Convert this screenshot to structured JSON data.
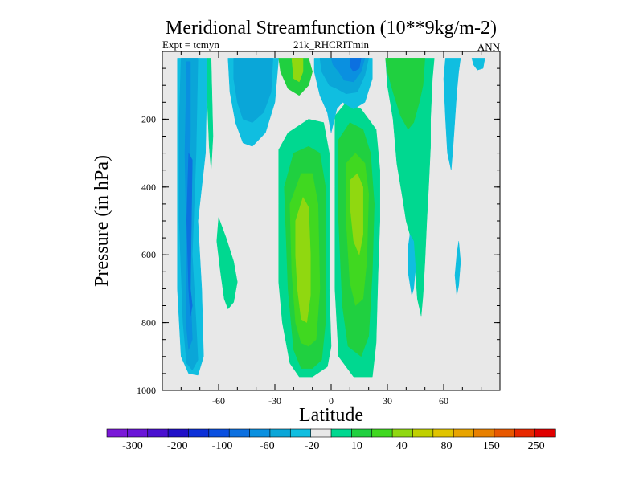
{
  "chart_data": {
    "type": "contour",
    "title": "Meridional Streamfunction (10**9kg/m-2)",
    "subtitle_left": "Expt = tcmyn",
    "subtitle_center": "21k_RHCRITmin",
    "subtitle_right": "ANN",
    "xlabel": "Latitude",
    "ylabel": "Pressure (in hPa)",
    "xlim": [
      -90,
      90
    ],
    "ylim": [
      1000,
      0
    ],
    "x_ticks": [
      {
        "value": -60,
        "label": "-60"
      },
      {
        "value": -30,
        "label": "-30"
      },
      {
        "value": 0,
        "label": "0"
      },
      {
        "value": 30,
        "label": "30"
      },
      {
        "value": 60,
        "label": "60"
      }
    ],
    "y_ticks": [
      {
        "value": 200,
        "label": "200"
      },
      {
        "value": 400,
        "label": "400"
      },
      {
        "value": 600,
        "label": "600"
      },
      {
        "value": 800,
        "label": "800"
      },
      {
        "value": 1000,
        "label": "1000"
      }
    ],
    "colorbar": {
      "colors": [
        "#7a18d8",
        "#6a14d8",
        "#4a10d0",
        "#2010c8",
        "#0c30d8",
        "#0a50e0",
        "#0c70e0",
        "#0a90e0",
        "#0aa6d8",
        "#10bee0",
        "#e8e8e8",
        "#00d890",
        "#20d040",
        "#40d820",
        "#90d810",
        "#c0d000",
        "#e0c400",
        "#e8a400",
        "#e88000",
        "#e85800",
        "#e82800",
        "#e00000"
      ],
      "labels": [
        "-300",
        "-200",
        "-100",
        "-60",
        "-20",
        "10",
        "40",
        "80",
        "150",
        "250"
      ]
    },
    "contours": [
      {
        "name": "sh-polar-outer",
        "color": "#10bee0",
        "points": [
          [
            -82,
            20
          ],
          [
            -66,
            20
          ],
          [
            -67,
            300
          ],
          [
            -71,
            500
          ],
          [
            -69,
            700
          ],
          [
            -68,
            900
          ],
          [
            -71,
            955
          ],
          [
            -76,
            950
          ],
          [
            -80,
            900
          ],
          [
            -82,
            700
          ],
          [
            -82,
            300
          ]
        ]
      },
      {
        "name": "sh-polar-mid",
        "color": "#0aa6d8",
        "points": [
          [
            -80,
            20
          ],
          [
            -71,
            20
          ],
          [
            -72,
            300
          ],
          [
            -74,
            600
          ],
          [
            -72,
            800
          ],
          [
            -71,
            910
          ],
          [
            -74,
            940
          ],
          [
            -77,
            920
          ],
          [
            -79,
            800
          ],
          [
            -81,
            500
          ],
          [
            -81,
            200
          ]
        ]
      },
      {
        "name": "sh-polar-inner",
        "color": "#0a90e0",
        "points": [
          [
            -77,
            30
          ],
          [
            -75,
            30
          ],
          [
            -75,
            250
          ],
          [
            -76,
            500
          ],
          [
            -75,
            700
          ],
          [
            -74,
            850
          ],
          [
            -76,
            880
          ],
          [
            -77,
            820
          ],
          [
            -77,
            600
          ],
          [
            -78,
            300
          ]
        ]
      },
      {
        "name": "sh-polar-core",
        "color": "#0c70e0",
        "points": [
          [
            -76,
            300
          ],
          [
            -74,
            320
          ],
          [
            -75,
            700
          ],
          [
            -74,
            750
          ],
          [
            -75,
            780
          ],
          [
            -76,
            700
          ],
          [
            -77,
            500
          ]
        ]
      },
      {
        "name": "sh-thin-green",
        "color": "#00d890",
        "points": [
          [
            -66,
            20
          ],
          [
            -64,
            20
          ],
          [
            -63,
            250
          ],
          [
            -64,
            350
          ],
          [
            -65,
            280
          ],
          [
            -66,
            150
          ]
        ]
      },
      {
        "name": "sh-ferrel-green",
        "color": "#00d890",
        "points": [
          [
            -60,
            490
          ],
          [
            -56,
            550
          ],
          [
            -52,
            620
          ],
          [
            -50,
            680
          ],
          [
            -52,
            740
          ],
          [
            -55,
            760
          ],
          [
            -57,
            730
          ],
          [
            -59,
            650
          ],
          [
            -61,
            560
          ]
        ]
      },
      {
        "name": "sh-mid-blue-outer",
        "color": "#10bee0",
        "points": [
          [
            -55,
            20
          ],
          [
            -28,
            20
          ],
          [
            -30,
            150
          ],
          [
            -35,
            240
          ],
          [
            -42,
            280
          ],
          [
            -47,
            270
          ],
          [
            -51,
            210
          ],
          [
            -54,
            120
          ]
        ]
      },
      {
        "name": "sh-mid-blue-inner",
        "color": "#0aa6d8",
        "points": [
          [
            -52,
            20
          ],
          [
            -31,
            20
          ],
          [
            -32,
            120
          ],
          [
            -36,
            180
          ],
          [
            -42,
            210
          ],
          [
            -47,
            200
          ],
          [
            -50,
            150
          ],
          [
            -52,
            80
          ]
        ]
      },
      {
        "name": "hadley-s-outer",
        "color": "#00d890",
        "points": [
          [
            -28,
            290
          ],
          [
            -23,
            240
          ],
          [
            -12,
            200
          ],
          [
            -4,
            210
          ],
          [
            -1,
            300
          ],
          [
            -1,
            700
          ],
          [
            0,
            870
          ],
          [
            -2,
            930
          ],
          [
            -10,
            960
          ],
          [
            -17,
            960
          ],
          [
            -22,
            920
          ],
          [
            -26,
            800
          ],
          [
            -28,
            680
          ],
          [
            -28,
            450
          ]
        ]
      },
      {
        "name": "hadley-s-mid",
        "color": "#20d040",
        "points": [
          [
            -25,
            400
          ],
          [
            -20,
            300
          ],
          [
            -12,
            280
          ],
          [
            -6,
            300
          ],
          [
            -3,
            400
          ],
          [
            -3,
            800
          ],
          [
            -5,
            910
          ],
          [
            -10,
            935
          ],
          [
            -16,
            935
          ],
          [
            -20,
            880
          ],
          [
            -23,
            700
          ],
          [
            -24,
            550
          ]
        ]
      },
      {
        "name": "hadley-s-inner",
        "color": "#40d820",
        "points": [
          [
            -22,
            450
          ],
          [
            -16,
            360
          ],
          [
            -10,
            360
          ],
          [
            -7,
            450
          ],
          [
            -6,
            700
          ],
          [
            -8,
            850
          ],
          [
            -12,
            870
          ],
          [
            -16,
            860
          ],
          [
            -19,
            800
          ],
          [
            -21,
            650
          ]
        ]
      },
      {
        "name": "hadley-s-core",
        "color": "#90d810",
        "points": [
          [
            -19,
            500
          ],
          [
            -15,
            430
          ],
          [
            -12,
            460
          ],
          [
            -11,
            600
          ],
          [
            -11,
            720
          ],
          [
            -13,
            800
          ],
          [
            -16,
            790
          ],
          [
            -18,
            700
          ],
          [
            -19,
            600
          ]
        ]
      },
      {
        "name": "hadley-s-top-outer",
        "color": "#20d040",
        "points": [
          [
            -28,
            20
          ],
          [
            -12,
            20
          ],
          [
            -10,
            60
          ],
          [
            -12,
            100
          ],
          [
            -17,
            130
          ],
          [
            -23,
            110
          ],
          [
            -27,
            60
          ]
        ]
      },
      {
        "name": "hadley-s-top-inner",
        "color": "#90d810",
        "points": [
          [
            -21,
            20
          ],
          [
            -15,
            20
          ],
          [
            -15,
            60
          ],
          [
            -17,
            90
          ],
          [
            -20,
            80
          ]
        ]
      },
      {
        "name": "hadley-n-outer",
        "color": "#00d890",
        "points": [
          [
            2,
            190
          ],
          [
            8,
            150
          ],
          [
            16,
            170
          ],
          [
            24,
            230
          ],
          [
            26,
            350
          ],
          [
            26,
            500
          ],
          [
            25,
            660
          ],
          [
            24,
            860
          ],
          [
            22,
            960
          ],
          [
            12,
            960
          ],
          [
            4,
            900
          ],
          [
            2,
            700
          ],
          [
            2,
            400
          ]
        ]
      },
      {
        "name": "hadley-n-mid",
        "color": "#20d040",
        "points": [
          [
            4,
            260
          ],
          [
            10,
            210
          ],
          [
            17,
            230
          ],
          [
            21,
            300
          ],
          [
            23,
            450
          ],
          [
            22,
            650
          ],
          [
            20,
            840
          ],
          [
            16,
            900
          ],
          [
            9,
            870
          ],
          [
            6,
            750
          ],
          [
            4,
            500
          ]
        ]
      },
      {
        "name": "hadley-n-inner",
        "color": "#40d820",
        "points": [
          [
            8,
            330
          ],
          [
            13,
            300
          ],
          [
            18,
            330
          ],
          [
            20,
            420
          ],
          [
            19,
            620
          ],
          [
            17,
            730
          ],
          [
            13,
            750
          ],
          [
            10,
            680
          ],
          [
            8,
            500
          ]
        ]
      },
      {
        "name": "hadley-n-core",
        "color": "#90d810",
        "points": [
          [
            10,
            380
          ],
          [
            14,
            360
          ],
          [
            17,
            400
          ],
          [
            17,
            540
          ],
          [
            15,
            600
          ],
          [
            12,
            560
          ],
          [
            10,
            450
          ]
        ]
      },
      {
        "name": "tropic-blue-outer",
        "color": "#10bee0",
        "points": [
          [
            -9,
            20
          ],
          [
            22,
            20
          ],
          [
            22,
            80
          ],
          [
            18,
            150
          ],
          [
            12,
            170
          ],
          [
            6,
            150
          ],
          [
            3,
            170
          ],
          [
            0,
            240
          ],
          [
            -2,
            180
          ],
          [
            -6,
            130
          ],
          [
            -9,
            60
          ]
        ]
      },
      {
        "name": "tropic-blue-mid",
        "color": "#0aa6d8",
        "points": [
          [
            -6,
            20
          ],
          [
            20,
            20
          ],
          [
            18,
            70
          ],
          [
            14,
            120
          ],
          [
            8,
            125
          ],
          [
            3,
            110
          ],
          [
            -1,
            100
          ],
          [
            -5,
            60
          ]
        ]
      },
      {
        "name": "tropic-blue-inner",
        "color": "#0a90e0",
        "points": [
          [
            0,
            20
          ],
          [
            18,
            20
          ],
          [
            16,
            60
          ],
          [
            12,
            90
          ],
          [
            7,
            85
          ],
          [
            4,
            60
          ],
          [
            1,
            40
          ]
        ]
      },
      {
        "name": "tropic-blue-core",
        "color": "#0c70e0",
        "points": [
          [
            10,
            20
          ],
          [
            16,
            20
          ],
          [
            15,
            50
          ],
          [
            12,
            60
          ],
          [
            10,
            45
          ]
        ]
      },
      {
        "name": "nh-mid-green",
        "color": "#00d890",
        "points": [
          [
            29,
            20
          ],
          [
            55,
            20
          ],
          [
            54,
            80
          ],
          [
            53,
            200
          ],
          [
            53,
            280
          ],
          [
            52,
            400
          ],
          [
            51,
            500
          ],
          [
            50,
            620
          ],
          [
            49,
            720
          ],
          [
            48,
            780
          ],
          [
            46,
            730
          ],
          [
            44,
            580
          ],
          [
            40,
            500
          ],
          [
            38,
            430
          ],
          [
            35,
            330
          ],
          [
            33,
            200
          ],
          [
            30,
            100
          ]
        ]
      },
      {
        "name": "nh-mid-lightgreen",
        "color": "#20d040",
        "points": [
          [
            29,
            20
          ],
          [
            50,
            20
          ],
          [
            49,
            100
          ],
          [
            47,
            150
          ],
          [
            44,
            210
          ],
          [
            41,
            230
          ],
          [
            37,
            190
          ],
          [
            33,
            120
          ],
          [
            30,
            60
          ]
        ]
      },
      {
        "name": "nh-blue-finger",
        "color": "#10bee0",
        "points": [
          [
            42,
            540
          ],
          [
            44,
            560
          ],
          [
            45,
            640
          ],
          [
            44,
            700
          ],
          [
            43,
            720
          ],
          [
            41,
            650
          ],
          [
            41,
            580
          ]
        ]
      },
      {
        "name": "nh-polar-cyan",
        "color": "#10bee0",
        "points": [
          [
            61,
            20
          ],
          [
            69,
            20
          ],
          [
            68,
            60
          ],
          [
            67,
            120
          ],
          [
            66,
            200
          ],
          [
            65,
            280
          ],
          [
            64,
            350
          ],
          [
            62,
            300
          ],
          [
            61,
            200
          ],
          [
            60,
            80
          ]
        ]
      },
      {
        "name": "nh-polar-thin",
        "color": "#10bee0",
        "points": [
          [
            68,
            560
          ],
          [
            69,
            620
          ],
          [
            68,
            690
          ],
          [
            67,
            720
          ],
          [
            66,
            660
          ],
          [
            67,
            600
          ]
        ]
      },
      {
        "name": "nh-pole-cyan",
        "color": "#10bee0",
        "points": [
          [
            75,
            20
          ],
          [
            82,
            20
          ],
          [
            81,
            50
          ],
          [
            78,
            55
          ],
          [
            76,
            40
          ]
        ]
      }
    ]
  }
}
